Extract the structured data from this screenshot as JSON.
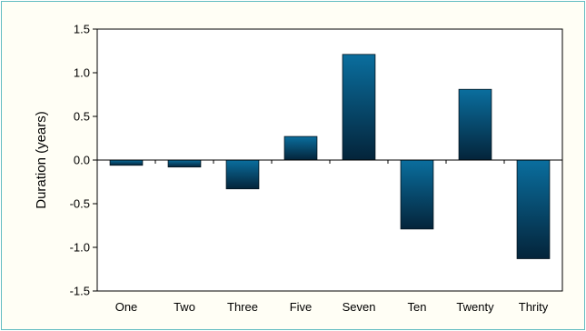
{
  "chart_data": {
    "type": "bar",
    "title": "",
    "xlabel": "",
    "ylabel": "Duration (years)",
    "categories": [
      "One",
      "Two",
      "Three",
      "Five",
      "Seven",
      "Ten",
      "Twenty",
      "Thrity"
    ],
    "values": [
      -0.06,
      -0.08,
      -0.33,
      0.27,
      1.21,
      -0.79,
      0.81,
      -1.13
    ],
    "ylim": [
      -1.5,
      1.5
    ],
    "yticks": [
      1.5,
      1.0,
      0.5,
      0.0,
      -0.5,
      -1.0,
      -1.5
    ],
    "ytick_labels": [
      "1.5",
      "1.0",
      "0.5",
      "0.0",
      "-0.5",
      "-1.0",
      "-1.5"
    ],
    "grid": false,
    "legend": "none",
    "colors": {
      "bar_top": "#0a6e9e",
      "bar_bottom": "#04243a",
      "bar_edge": "#02121d",
      "plot_background": "#ffffff",
      "frame_background": "#fffef5",
      "frame_border": "#62bcc1",
      "axis": "#000000"
    }
  }
}
